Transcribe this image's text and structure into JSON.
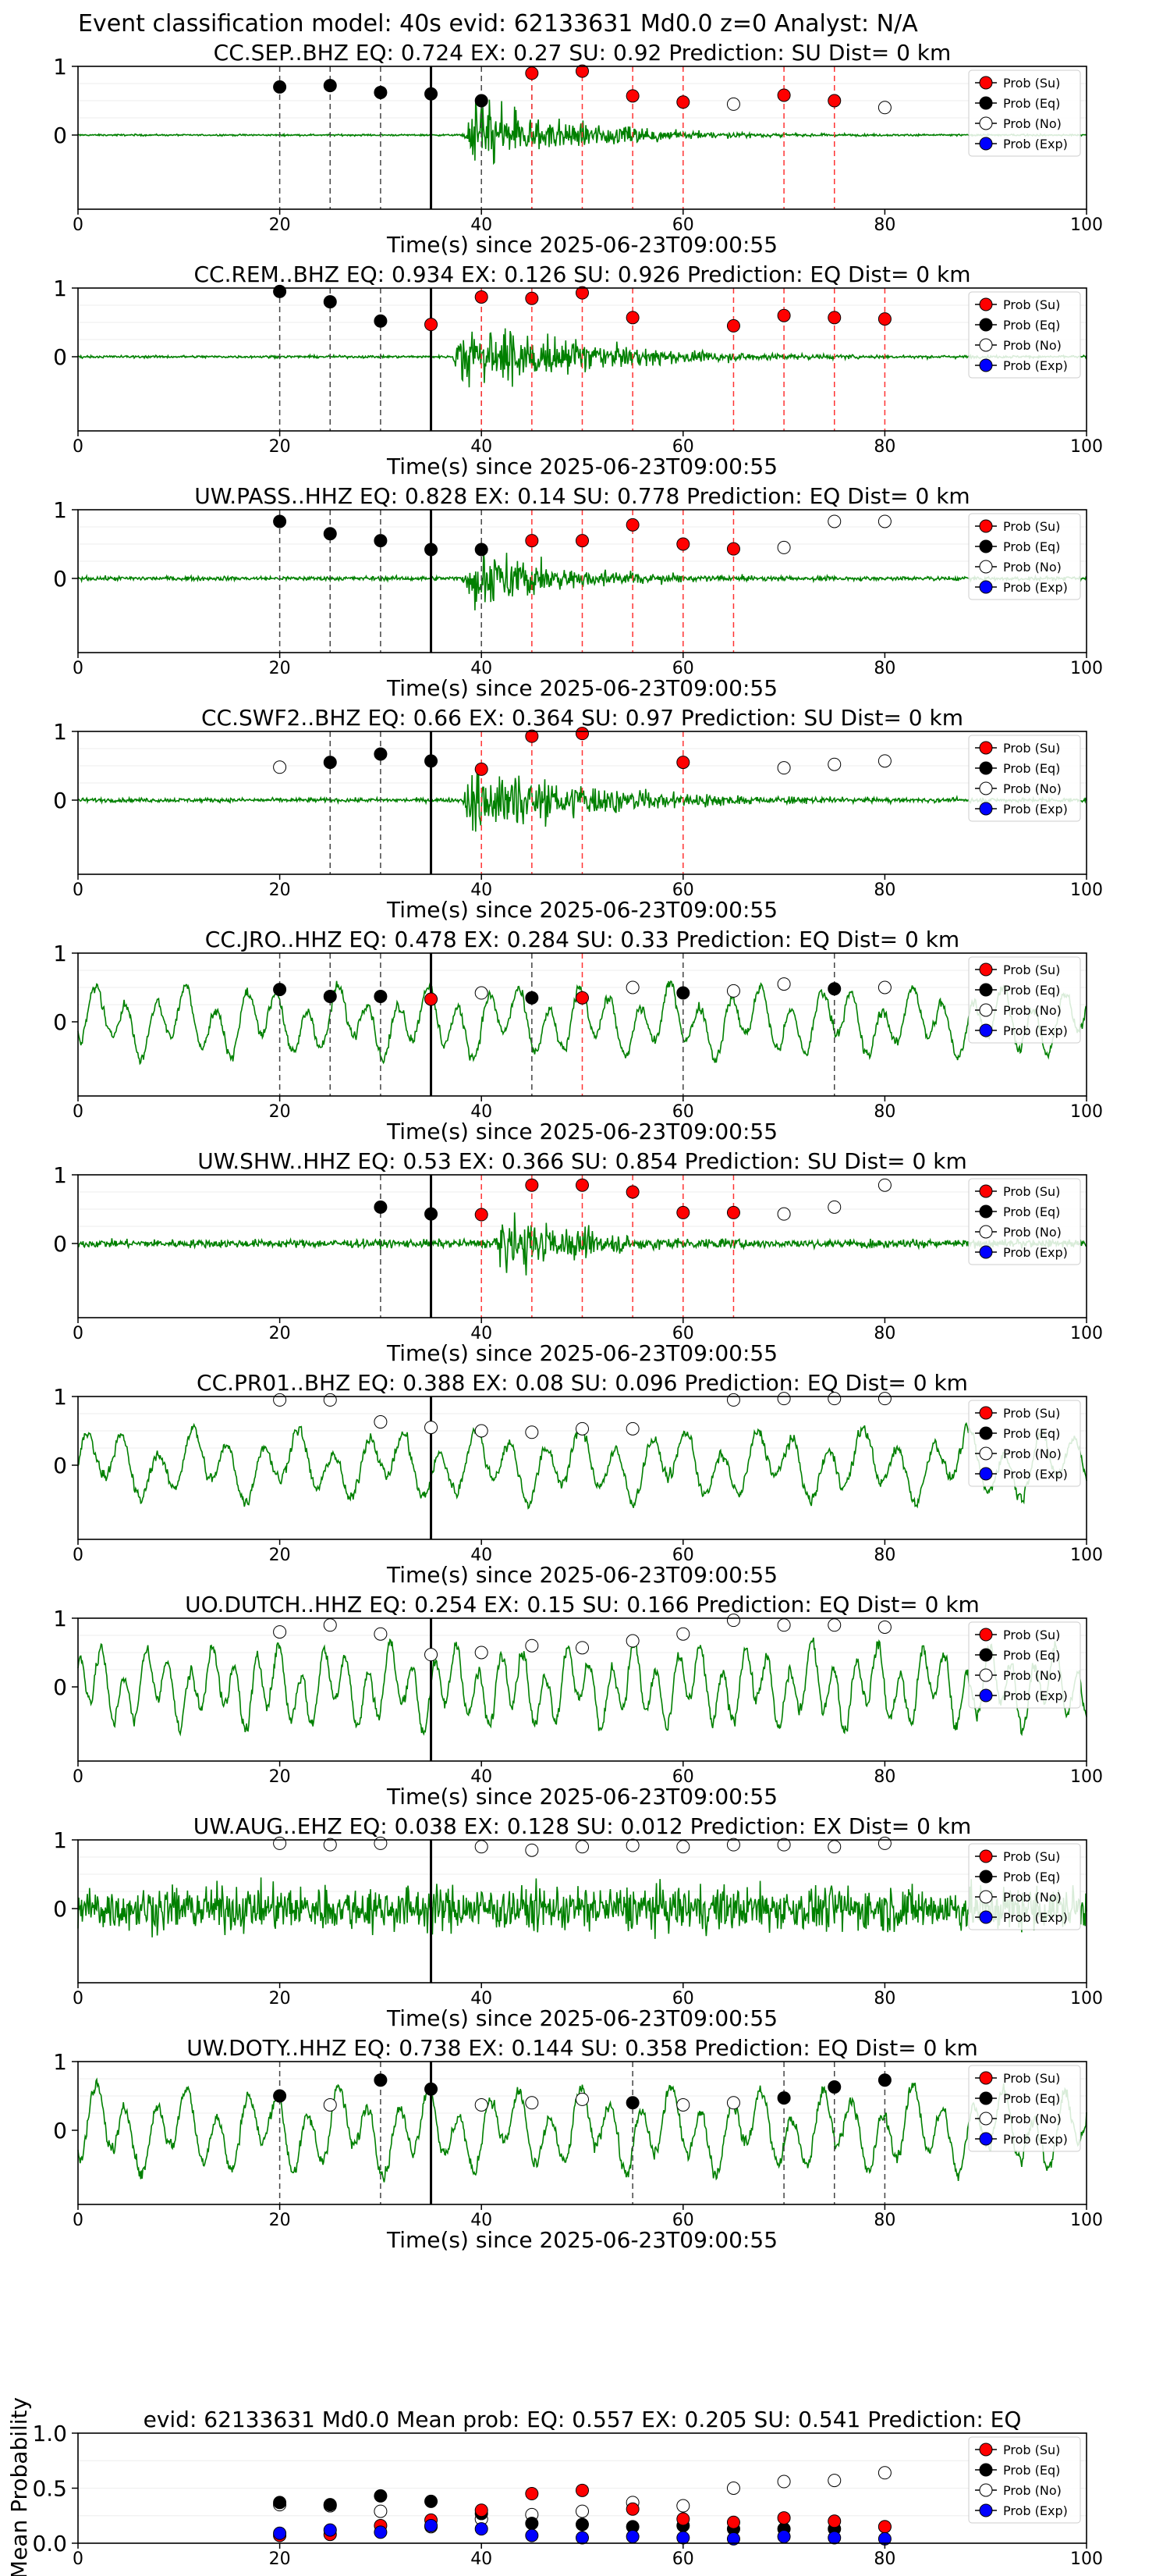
{
  "page_title": "Event classification model: 40s evid: 62133631 Md0.0 z=0 Analyst: N/A",
  "legend_labels": [
    "Prob (Su)",
    "Prob (Eq)",
    "Prob (No)",
    "Prob (Exp)"
  ],
  "colors": {
    "su": "#ff0000",
    "eq": "#000000",
    "no": "#ffffff",
    "exp": "#0000ff",
    "wave": "#008000"
  },
  "common": {
    "xlabel": "Time(s) since 2025-06-23T09:00:55",
    "xlim": [
      0,
      100
    ],
    "xticks": [
      0,
      20,
      40,
      60,
      80,
      100
    ],
    "yticks_prob": [
      0,
      1
    ]
  },
  "chart_data": [
    {
      "type": "scatter",
      "title": "CC.SEP..BHZ   EQ: 0.724  EX: 0.27  SU: 0.92   Prediction: SU    Dist= 0 km",
      "p_time": 35,
      "amplitude": 0.55,
      "onset": 38,
      "decay": 10,
      "noise": 0.02,
      "period": 0,
      "eq": [
        [
          20,
          0.7
        ],
        [
          25,
          0.72
        ],
        [
          30,
          0.62
        ],
        [
          35,
          0.6
        ],
        [
          40,
          0.5
        ]
      ],
      "su": [
        [
          45,
          0.9
        ],
        [
          50,
          0.93
        ],
        [
          55,
          0.57
        ],
        [
          60,
          0.48
        ],
        [
          70,
          0.58
        ],
        [
          75,
          0.5
        ]
      ],
      "no": [
        [
          65,
          0.45
        ],
        [
          80,
          0.4
        ]
      ],
      "eq_lines": [
        20,
        25,
        30,
        40,
        45
      ],
      "su_lines": [
        45,
        50,
        55,
        60,
        70,
        75
      ]
    },
    {
      "type": "scatter",
      "title": "CC.REM..BHZ   EQ: 0.934  EX: 0.126  SU: 0.926   Prediction: EQ    Dist= 0 km",
      "p_time": 35,
      "amplitude": 0.6,
      "onset": 37,
      "decay": 12,
      "noise": 0.03,
      "period": 0,
      "eq": [
        [
          20,
          0.95
        ],
        [
          25,
          0.8
        ],
        [
          30,
          0.52
        ]
      ],
      "su": [
        [
          35,
          0.47
        ],
        [
          40,
          0.87
        ],
        [
          45,
          0.85
        ],
        [
          50,
          0.93
        ],
        [
          55,
          0.57
        ],
        [
          65,
          0.45
        ],
        [
          70,
          0.6
        ],
        [
          75,
          0.57
        ],
        [
          80,
          0.55
        ]
      ],
      "no": [],
      "eq_lines": [
        20,
        25,
        30,
        40
      ],
      "su_lines": [
        40,
        45,
        50,
        55,
        65,
        70,
        75,
        80
      ]
    },
    {
      "type": "scatter",
      "title": "UW.PASS..HHZ   EQ: 0.828  EX: 0.14  SU: 0.778   Prediction: EQ    Dist= 0 km",
      "p_time": 35,
      "amplitude": 0.5,
      "onset": 38,
      "decay": 9,
      "noise": 0.05,
      "period": 0,
      "eq": [
        [
          20,
          0.83
        ],
        [
          25,
          0.65
        ],
        [
          30,
          0.55
        ],
        [
          35,
          0.42
        ],
        [
          40,
          0.42
        ]
      ],
      "su": [
        [
          45,
          0.55
        ],
        [
          50,
          0.55
        ],
        [
          55,
          0.78
        ],
        [
          60,
          0.5
        ],
        [
          65,
          0.43
        ]
      ],
      "no": [
        [
          70,
          0.45
        ],
        [
          75,
          0.83
        ],
        [
          80,
          0.83
        ]
      ],
      "eq_lines": [
        20,
        25,
        30,
        40
      ],
      "su_lines": [
        45,
        50,
        55,
        60,
        65
      ]
    },
    {
      "type": "scatter",
      "title": "CC.SWF2..BHZ   EQ: 0.66  EX: 0.364  SU: 0.97   Prediction: SU    Dist= 0 km",
      "p_time": 35,
      "amplitude": 0.6,
      "onset": 38,
      "decay": 12,
      "noise": 0.05,
      "period": 0,
      "eq": [
        [
          25,
          0.55
        ],
        [
          30,
          0.67
        ],
        [
          35,
          0.57
        ]
      ],
      "su": [
        [
          40,
          0.45
        ],
        [
          45,
          0.93
        ],
        [
          50,
          0.97
        ],
        [
          60,
          0.55
        ]
      ],
      "no": [
        [
          20,
          0.48
        ],
        [
          70,
          0.47
        ],
        [
          75,
          0.52
        ],
        [
          80,
          0.57
        ]
      ],
      "eq_lines": [
        25,
        30
      ],
      "su_lines": [
        40,
        45,
        50,
        60
      ]
    },
    {
      "type": "scatter",
      "title": "CC.JRO..HHZ   EQ: 0.478  EX: 0.284  SU: 0.33   Prediction: EQ    Dist= 0 km",
      "p_time": 35,
      "amplitude": 0,
      "onset": 0,
      "decay": 1,
      "noise": 0.25,
      "period": 3,
      "eq": [
        [
          20,
          0.47
        ],
        [
          25,
          0.37
        ],
        [
          30,
          0.37
        ],
        [
          45,
          0.35
        ],
        [
          60,
          0.42
        ],
        [
          75,
          0.48
        ]
      ],
      "su": [
        [
          35,
          0.33
        ],
        [
          50,
          0.35
        ]
      ],
      "no": [
        [
          40,
          0.42
        ],
        [
          55,
          0.5
        ],
        [
          65,
          0.45
        ],
        [
          70,
          0.55
        ],
        [
          80,
          0.5
        ]
      ],
      "eq_lines": [
        20,
        25,
        30,
        45,
        60,
        75
      ],
      "su_lines": [
        35,
        50
      ]
    },
    {
      "type": "scatter",
      "title": "UW.SHW..HHZ   EQ: 0.53  EX: 0.366  SU: 0.854   Prediction: SU    Dist= 0 km",
      "p_time": 35,
      "amplitude": 0.55,
      "onset": 41,
      "decay": 8,
      "noise": 0.1,
      "period": 0,
      "eq": [
        [
          30,
          0.53
        ],
        [
          35,
          0.43
        ]
      ],
      "su": [
        [
          40,
          0.42
        ],
        [
          45,
          0.85
        ],
        [
          50,
          0.85
        ],
        [
          55,
          0.75
        ],
        [
          60,
          0.45
        ],
        [
          65,
          0.45
        ]
      ],
      "no": [
        [
          70,
          0.43
        ],
        [
          75,
          0.53
        ],
        [
          80,
          0.85
        ]
      ],
      "eq_lines": [
        30
      ],
      "su_lines": [
        40,
        45,
        50,
        55,
        60,
        65
      ]
    },
    {
      "type": "scatter",
      "title": "CC.PR01..BHZ   EQ: 0.388  EX: 0.08  SU: 0.096   Prediction: EQ    Dist= 0 km",
      "p_time": 35,
      "amplitude": 0,
      "onset": 0,
      "decay": 1,
      "noise": 0.25,
      "period": 3.5,
      "eq": [],
      "su": [],
      "no": [
        [
          20,
          0.95
        ],
        [
          25,
          0.95
        ],
        [
          30,
          0.63
        ],
        [
          35,
          0.55
        ],
        [
          40,
          0.5
        ],
        [
          45,
          0.48
        ],
        [
          50,
          0.53
        ],
        [
          55,
          0.53
        ],
        [
          65,
          0.95
        ],
        [
          70,
          0.97
        ],
        [
          75,
          0.97
        ],
        [
          80,
          0.97
        ]
      ],
      "eq_lines": [],
      "su_lines": []
    },
    {
      "type": "scatter",
      "title": "UO.DUTCH..HHZ   EQ: 0.254  EX: 0.15  SU: 0.166   Prediction: EQ    Dist= 0 km",
      "p_time": 35,
      "amplitude": 0,
      "onset": 0,
      "decay": 1,
      "noise": 0.3,
      "period": 2.2,
      "eq": [],
      "su": [],
      "no": [
        [
          20,
          0.8
        ],
        [
          25,
          0.9
        ],
        [
          30,
          0.77
        ],
        [
          35,
          0.47
        ],
        [
          40,
          0.5
        ],
        [
          45,
          0.6
        ],
        [
          50,
          0.57
        ],
        [
          55,
          0.67
        ],
        [
          60,
          0.77
        ],
        [
          65,
          0.97
        ],
        [
          70,
          0.9
        ],
        [
          75,
          0.9
        ],
        [
          80,
          0.87
        ]
      ],
      "eq_lines": [],
      "su_lines": []
    },
    {
      "type": "scatter",
      "title": "UW.AUG..EHZ   EQ: 0.038  EX: 0.128  SU: 0.012   Prediction: EX    Dist= 0 km",
      "p_time": 35,
      "amplitude": 0,
      "onset": 0,
      "decay": 1,
      "noise": 0.55,
      "period": 0,
      "eq": [],
      "su": [],
      "no": [
        [
          20,
          0.95
        ],
        [
          25,
          0.93
        ],
        [
          30,
          0.95
        ],
        [
          40,
          0.9
        ],
        [
          45,
          0.85
        ],
        [
          50,
          0.9
        ],
        [
          55,
          0.92
        ],
        [
          60,
          0.9
        ],
        [
          65,
          0.93
        ],
        [
          70,
          0.93
        ],
        [
          75,
          0.9
        ],
        [
          80,
          0.95
        ]
      ],
      "eq_lines": [],
      "su_lines": []
    },
    {
      "type": "scatter",
      "title": "UW.DOTY..HHZ   EQ: 0.738  EX: 0.144  SU: 0.358   Prediction: EQ    Dist= 0 km",
      "p_time": 35,
      "amplitude": 0,
      "onset": 0,
      "decay": 1,
      "noise": 0.3,
      "period": 3,
      "eq": [
        [
          20,
          0.5
        ],
        [
          30,
          0.73
        ],
        [
          35,
          0.6
        ],
        [
          55,
          0.4
        ],
        [
          70,
          0.47
        ],
        [
          75,
          0.63
        ],
        [
          80,
          0.73
        ]
      ],
      "su": [],
      "no": [
        [
          25,
          0.37
        ],
        [
          40,
          0.37
        ],
        [
          45,
          0.4
        ],
        [
          50,
          0.45
        ],
        [
          60,
          0.37
        ],
        [
          65,
          0.4
        ]
      ],
      "eq_lines": [
        20,
        30,
        55,
        70,
        75,
        80
      ],
      "su_lines": []
    },
    {
      "type": "scatter",
      "title": "evid: 62133631  Md0.0   Mean prob:   EQ: 0.557  EX: 0.205  SU: 0.541   Prediction: EQ",
      "ylabel": "Mean Probability",
      "ylim": [
        0,
        1
      ],
      "yticks": [
        0.0,
        0.5,
        1.0
      ],
      "xticks": [
        0,
        20,
        40,
        60,
        80,
        100
      ],
      "su": [
        [
          20,
          0.07
        ],
        [
          25,
          0.08
        ],
        [
          30,
          0.16
        ],
        [
          35,
          0.21
        ],
        [
          40,
          0.3
        ],
        [
          45,
          0.45
        ],
        [
          50,
          0.48
        ],
        [
          55,
          0.31
        ],
        [
          60,
          0.22
        ],
        [
          65,
          0.19
        ],
        [
          70,
          0.23
        ],
        [
          75,
          0.2
        ],
        [
          80,
          0.15
        ]
      ],
      "eq": [
        [
          20,
          0.37
        ],
        [
          25,
          0.35
        ],
        [
          30,
          0.43
        ],
        [
          35,
          0.38
        ],
        [
          40,
          0.27
        ],
        [
          45,
          0.18
        ],
        [
          50,
          0.17
        ],
        [
          55,
          0.15
        ],
        [
          60,
          0.16
        ],
        [
          65,
          0.13
        ],
        [
          70,
          0.13
        ],
        [
          75,
          0.13
        ],
        [
          80,
          0.15
        ]
      ],
      "no": [
        [
          20,
          0.35
        ],
        [
          25,
          0.34
        ],
        [
          30,
          0.29
        ],
        [
          35,
          0.15
        ],
        [
          40,
          0.22
        ],
        [
          45,
          0.26
        ],
        [
          50,
          0.29
        ],
        [
          55,
          0.37
        ],
        [
          60,
          0.34
        ],
        [
          65,
          0.5
        ],
        [
          70,
          0.56
        ],
        [
          75,
          0.57
        ],
        [
          80,
          0.64
        ]
      ],
      "exp": [
        [
          20,
          0.09
        ],
        [
          25,
          0.12
        ],
        [
          30,
          0.1
        ],
        [
          35,
          0.16
        ],
        [
          40,
          0.13
        ],
        [
          45,
          0.07
        ],
        [
          50,
          0.05
        ],
        [
          55,
          0.06
        ],
        [
          60,
          0.05
        ],
        [
          65,
          0.04
        ],
        [
          70,
          0.06
        ],
        [
          75,
          0.05
        ],
        [
          80,
          0.04
        ]
      ]
    }
  ]
}
